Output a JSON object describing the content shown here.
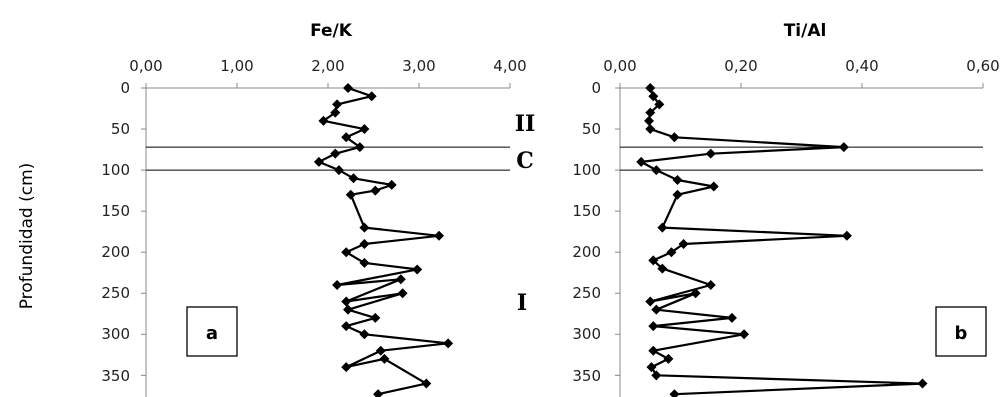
{
  "y_axis_label": "Profundidad (cm)",
  "chart_data": [
    {
      "type": "line",
      "title": "Fe/K",
      "panel_label": "a",
      "x_tick_labels": [
        "0,00",
        "1,00",
        "2,00",
        "3,00",
        "4,00"
      ],
      "x_ticks": [
        0,
        1,
        2,
        3,
        4
      ],
      "xlim": [
        0,
        4
      ],
      "y_tick_labels": [
        "0",
        "50",
        "100",
        "150",
        "200",
        "250",
        "300",
        "350"
      ],
      "y_ticks": [
        0,
        50,
        100,
        150,
        200,
        250,
        300,
        350
      ],
      "ylim": [
        0,
        375
      ],
      "y_inverted": true,
      "zone_boundaries": [
        72,
        100
      ],
      "zone_labels": [
        {
          "text": "II",
          "depth": 43
        },
        {
          "text": "C",
          "depth": 87
        },
        {
          "text": "I",
          "depth": 260
        }
      ],
      "series": [
        {
          "x": [
            2.22,
            2.48,
            2.1,
            2.08,
            1.95,
            2.4,
            2.2,
            2.35,
            2.08,
            1.9,
            2.12,
            2.28,
            2.7,
            2.52,
            2.25,
            2.4,
            3.22,
            2.4,
            2.2,
            2.4,
            2.98,
            2.1,
            2.8,
            2.2,
            2.82,
            2.22,
            2.52,
            2.2,
            2.4,
            3.32,
            2.58,
            2.2,
            2.62,
            3.08,
            2.55
          ],
          "y": [
            0,
            10,
            20,
            30,
            40,
            50,
            60,
            72,
            80,
            90,
            100,
            110,
            118,
            125,
            130,
            170,
            180,
            190,
            200,
            213,
            221,
            240,
            233,
            260,
            250,
            270,
            280,
            290,
            300,
            311,
            320,
            340,
            330,
            360,
            373
          ]
        }
      ]
    },
    {
      "type": "line",
      "title": "Ti/Al",
      "panel_label": "b",
      "x_tick_labels": [
        "0,00",
        "0,20",
        "0,40",
        "0,60"
      ],
      "x_ticks": [
        0,
        0.2,
        0.4,
        0.6
      ],
      "xlim": [
        0,
        0.6
      ],
      "y_tick_labels": [
        "0",
        "50",
        "100",
        "150",
        "200",
        "250",
        "300",
        "350"
      ],
      "y_ticks": [
        0,
        50,
        100,
        150,
        200,
        250,
        300,
        350
      ],
      "ylim": [
        0,
        375
      ],
      "y_inverted": true,
      "zone_boundaries": [
        72,
        100
      ],
      "zone_labels": [],
      "series": [
        {
          "x": [
            0.05,
            0.055,
            0.065,
            0.05,
            0.048,
            0.05,
            0.09,
            0.37,
            0.15,
            0.035,
            0.06,
            0.095,
            0.155,
            0.095,
            0.07,
            0.375,
            0.105,
            0.085,
            0.055,
            0.07,
            0.15,
            0.05,
            0.125,
            0.06,
            0.185,
            0.055,
            0.205,
            0.055,
            0.08,
            0.052,
            0.06,
            0.5,
            0.09
          ],
          "y": [
            0,
            10,
            20,
            30,
            40,
            50,
            60,
            72,
            80,
            90,
            100,
            112,
            120,
            130,
            170,
            180,
            190,
            200,
            210,
            220,
            240,
            260,
            250,
            270,
            280,
            290,
            300,
            320,
            330,
            340,
            350,
            360,
            373
          ]
        }
      ]
    }
  ]
}
